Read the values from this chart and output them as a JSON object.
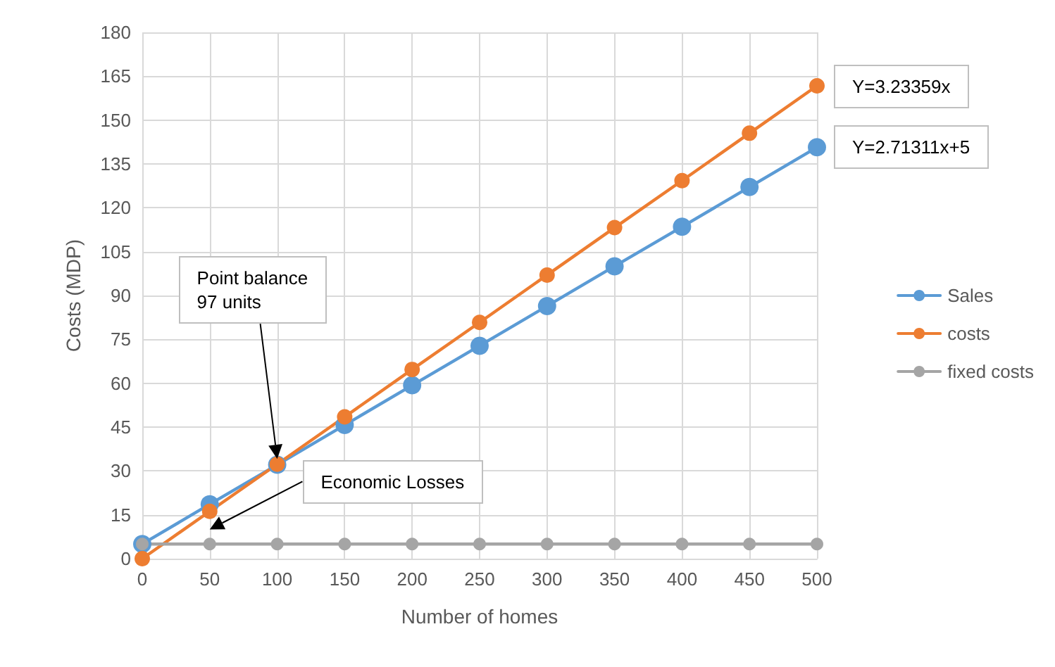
{
  "chart_data": {
    "type": "line",
    "xlabel": "Number of homes",
    "ylabel": "Costs (MDP)",
    "categories": [
      "0",
      "50",
      "100",
      "150",
      "200",
      "250",
      "300",
      "350",
      "400",
      "450",
      "500"
    ],
    "series": [
      {
        "name": "Sales",
        "color": "#5b9bd5",
        "values": [
          5,
          18.6,
          32.1,
          45.7,
          59.3,
          72.8,
          86.4,
          100,
          113.5,
          127.1,
          140.7
        ]
      },
      {
        "name": "costs",
        "color": "#ed7d31",
        "values": [
          0,
          16.2,
          32.3,
          48.5,
          64.7,
          80.8,
          97,
          113.2,
          129.3,
          145.5,
          161.7
        ]
      },
      {
        "name": "fixed costs",
        "color": "#a5a5a5",
        "values": [
          5,
          5,
          5,
          5,
          5,
          5,
          5,
          5,
          5,
          5,
          5
        ]
      }
    ],
    "ylim": [
      0,
      180
    ],
    "yticks": [
      0,
      15,
      30,
      45,
      60,
      75,
      90,
      105,
      120,
      135,
      150,
      165,
      180
    ],
    "grid": true,
    "legend": "right",
    "marker": "circle",
    "annotations": [
      "Point balance\n97 units",
      "Economic Losses",
      {
        "text": "Y=3.23359x",
        "x": "500",
        "y": 161.7
      },
      {
        "text": "Y=2.71311x+5",
        "x": "500",
        "y": 140.7
      }
    ]
  }
}
